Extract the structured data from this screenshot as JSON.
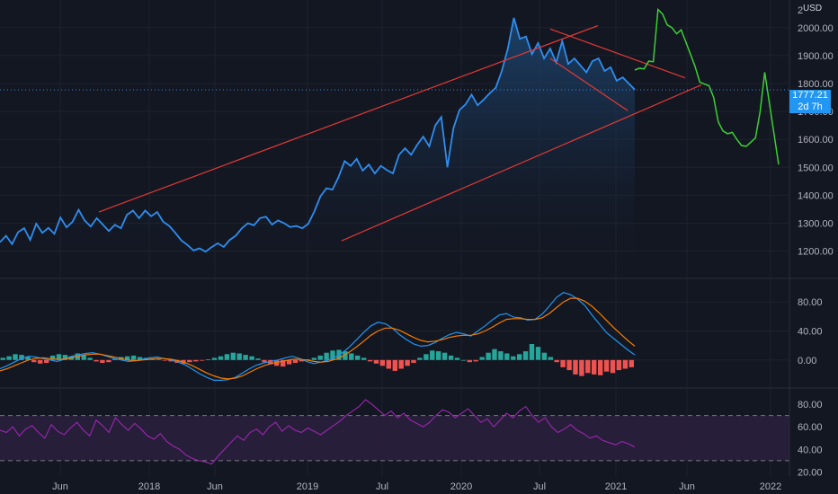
{
  "header": {
    "currency_label": "USD",
    "price_top_label": "2"
  },
  "markers": {
    "last_price": "1777.21",
    "countdown": "2d 7h"
  },
  "colors": {
    "background": "#131722",
    "grid": "#1e222d",
    "price_line": "#2e8ef0",
    "price_fill_top": "#1e4a78",
    "channel": "#e53935",
    "projection": "#3ccf33",
    "macd_line": "#2196f3",
    "signal_line": "#f57c00",
    "hist_pos": "#26a69a",
    "hist_neg": "#ef5350",
    "rsi_line": "#9c27b0",
    "rsi_band": "#2a1f3d"
  },
  "chart_data": [
    {
      "type": "line",
      "title": "",
      "x_tick_labels": [
        "Jun",
        "2018",
        "Jun",
        "2019",
        "Jul",
        "2020",
        "Jul",
        "2021",
        "Jun",
        "2022"
      ],
      "y_tick_labels": [
        "2000.00",
        "1900.00",
        "1800.00",
        "1700.00",
        "1600.00",
        "1500.00",
        "1400.00",
        "1300.00",
        "1200.00"
      ],
      "ylim": [
        1160,
        2070
      ],
      "series": [
        {
          "values": [
            1232,
            1255,
            1225,
            1268,
            1282,
            1240,
            1298,
            1265,
            1283,
            1262,
            1320,
            1285,
            1305,
            1348,
            1310,
            1288,
            1318,
            1295,
            1272,
            1294,
            1282,
            1330,
            1345,
            1318,
            1345,
            1325,
            1340,
            1305,
            1290,
            1265,
            1238,
            1222,
            1202,
            1210,
            1198,
            1214,
            1228,
            1215,
            1240,
            1255,
            1282,
            1300,
            1292,
            1318,
            1323,
            1295,
            1310,
            1300,
            1286,
            1290,
            1282,
            1298,
            1342,
            1396,
            1425,
            1420,
            1465,
            1522,
            1505,
            1530,
            1488,
            1510,
            1478,
            1505,
            1490,
            1478,
            1545,
            1568,
            1545,
            1580,
            1610,
            1575,
            1650,
            1680,
            1500,
            1640,
            1705,
            1725,
            1760,
            1722,
            1742,
            1765,
            1785,
            1845,
            1925,
            2035,
            1960,
            1968,
            1905,
            1945,
            1890,
            1925,
            1875,
            1952,
            1870,
            1890,
            1865,
            1840,
            1880,
            1890,
            1845,
            1858,
            1810,
            1822,
            1800,
            1778
          ]
        }
      ],
      "projection_path": [
        1848,
        1855,
        1852,
        1880,
        1878,
        2065,
        2048,
        2010,
        2000,
        1978,
        1992,
        1948,
        1905,
        1860,
        1805,
        1798,
        1792,
        1750,
        1662,
        1630,
        1620,
        1625,
        1600,
        1578,
        1575,
        1590,
        1605,
        1700,
        1840,
        1730,
        1620,
        1510
      ],
      "channel_lines": [
        {
          "from": [
            1150,
            1340
          ],
          "to": [
            2071,
            2007
          ]
        },
        {
          "from": [
            1380,
            1237
          ],
          "to": [
            2020,
            1795
          ]
        },
        {
          "from": [
            1520,
            1995
          ],
          "to": [
            2026,
            1820
          ]
        },
        {
          "from": [
            1545,
            1890
          ],
          "to": [
            2021,
            1703
          ]
        }
      ],
      "last_value": 1777.21,
      "grid": true
    },
    {
      "type": "bar",
      "title": "",
      "y_tick_labels": [
        "80.00",
        "40.00",
        "0.00"
      ],
      "ylim": [
        -30,
        105
      ],
      "histogram": [
        3,
        5,
        8,
        7,
        4,
        -3,
        -5,
        -4,
        6,
        8,
        7,
        5,
        9,
        6,
        3,
        -2,
        -4,
        -3,
        2,
        4,
        5,
        6,
        4,
        3,
        2,
        1,
        -1,
        -2,
        -4,
        -5,
        -3,
        -2,
        -1,
        1,
        3,
        5,
        8,
        10,
        9,
        7,
        5,
        2,
        -3,
        -6,
        -8,
        -9,
        -6,
        -4,
        -2,
        1,
        3,
        6,
        10,
        13,
        14,
        12,
        9,
        6,
        3,
        -2,
        -5,
        -8,
        -12,
        -15,
        -12,
        -8,
        -4,
        3,
        8,
        13,
        12,
        10,
        6,
        3,
        0,
        -3,
        -2,
        4,
        10,
        15,
        12,
        9,
        5,
        8,
        12,
        22,
        18,
        10,
        4,
        -3,
        -10,
        -14,
        -20,
        -22,
        -18,
        -20,
        -21,
        -16,
        -18,
        -14,
        -12,
        -10
      ],
      "series": [
        {
          "values": [
            -12,
            -8,
            -3,
            2,
            5,
            4,
            2,
            0,
            -2,
            1,
            5,
            7,
            9,
            10,
            8,
            5,
            2,
            0,
            -2,
            -1,
            1,
            3,
            4,
            2,
            0,
            -3,
            -7,
            -13,
            -19,
            -24,
            -28,
            -28,
            -27,
            -24,
            -18,
            -12,
            -7,
            -4,
            -2,
            0,
            3,
            5,
            2,
            -2,
            -5,
            -3,
            0,
            4,
            10,
            18,
            28,
            38,
            47,
            52,
            50,
            44,
            35,
            28,
            22,
            19,
            20,
            24,
            30,
            35,
            38,
            36,
            33,
            40,
            47,
            55,
            62,
            64,
            59,
            58,
            55,
            56,
            63,
            74,
            86,
            93,
            90,
            84,
            75,
            62,
            50,
            38,
            30,
            22,
            14,
            7
          ]
        },
        {
          "values": [
            -15,
            -12,
            -8,
            -4,
            0,
            2,
            3,
            2,
            1,
            1,
            3,
            5,
            7,
            8,
            8,
            6,
            4,
            2,
            0,
            -1,
            0,
            1,
            2,
            2,
            1,
            -1,
            -4,
            -8,
            -13,
            -18,
            -22,
            -25,
            -26,
            -25,
            -22,
            -17,
            -12,
            -8,
            -5,
            -3,
            -1,
            1,
            1,
            0,
            -2,
            -3,
            -2,
            1,
            5,
            11,
            18,
            26,
            34,
            40,
            44,
            44,
            41,
            36,
            31,
            27,
            25,
            26,
            28,
            31,
            33,
            34,
            34,
            36,
            40,
            45,
            51,
            56,
            57,
            57,
            56,
            56,
            58,
            64,
            72,
            80,
            85,
            85,
            81,
            74,
            65,
            55,
            45,
            36,
            27,
            19
          ]
        }
      ]
    },
    {
      "type": "line",
      "title": "",
      "y_tick_labels": [
        "80.00",
        "60.00",
        "40.00",
        "20.00"
      ],
      "ylim": [
        18,
        88
      ],
      "band": [
        30,
        70
      ],
      "series": [
        {
          "values": [
            57,
            55,
            60,
            52,
            58,
            61,
            55,
            50,
            62,
            56,
            53,
            59,
            64,
            57,
            52,
            66,
            61,
            55,
            68,
            62,
            57,
            63,
            58,
            52,
            49,
            54,
            47,
            43,
            40,
            35,
            32,
            30,
            29,
            27,
            34,
            40,
            46,
            52,
            48,
            55,
            58,
            53,
            60,
            64,
            56,
            61,
            57,
            55,
            59,
            56,
            53,
            57,
            61,
            65,
            70,
            74,
            78,
            84,
            80,
            75,
            70,
            74,
            68,
            72,
            66,
            63,
            60,
            64,
            70,
            75,
            73,
            68,
            72,
            76,
            70,
            64,
            67,
            60,
            66,
            72,
            68,
            74,
            78,
            70,
            64,
            68,
            60,
            55,
            58,
            62,
            57,
            54,
            50,
            52,
            48,
            46,
            44,
            47,
            45,
            42
          ]
        }
      ]
    }
  ]
}
